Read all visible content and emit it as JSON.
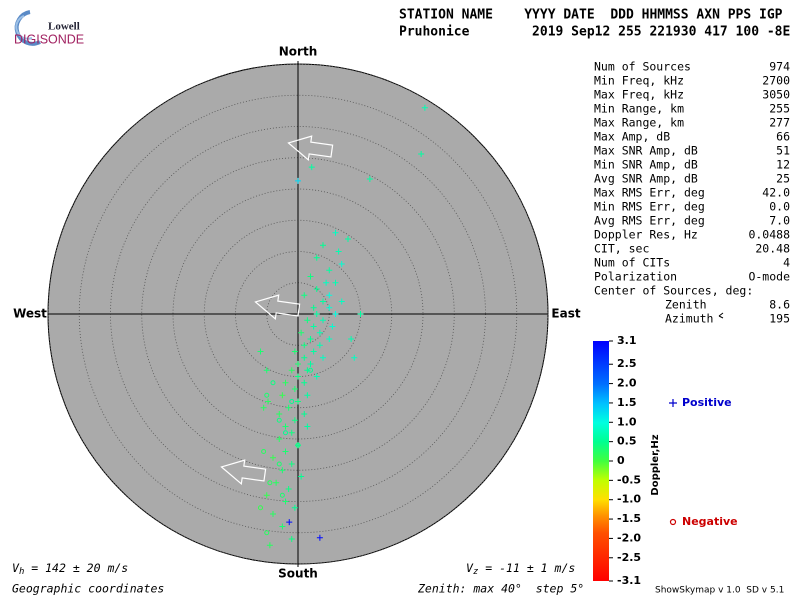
{
  "logo": {
    "top": "Lowell",
    "bottom": "DIGISONDE"
  },
  "header": {
    "line1": "STATION NAME    YYYY DATE  DDD HHMMSS AXN PPS IGP",
    "line2": "Pruhonice        2019 Sep12 255 221930 417 100 -8E"
  },
  "stats": {
    "rows": [
      [
        "Num of Sources",
        "974"
      ],
      [
        "Min Freq, kHz",
        "2700"
      ],
      [
        "Max Freq, kHz",
        "3050"
      ],
      [
        "Min Range, km",
        "255"
      ],
      [
        "Max Range, km",
        "277"
      ],
      [
        "Max Amp, dB",
        "66"
      ],
      [
        "Max SNR Amp, dB",
        "51"
      ],
      [
        "Min SNR Amp, dB",
        "12"
      ],
      [
        "Avg SNR Amp, dB",
        "25"
      ],
      [
        "Max RMS Err, deg",
        "42.0"
      ],
      [
        "Min RMS Err, deg",
        "0.0"
      ],
      [
        "Avg RMS Err, deg",
        "7.0"
      ],
      [
        "Doppler Res, Hz",
        "0.0488"
      ],
      [
        "CIT, sec",
        "20.48"
      ],
      [
        "Num of CITs",
        "4"
      ],
      [
        "Polarization",
        "O-mode"
      ]
    ],
    "center_title": "Center of Sources, deg:",
    "center_rows": [
      [
        "Zenith",
        "8.6"
      ],
      [
        "Azimuth",
        "195"
      ]
    ]
  },
  "footer": {
    "vh": {
      "symbol": "V",
      "subscript": "h",
      "text": " = 142 ± 20 m/s"
    },
    "vz": {
      "symbol": "V",
      "subscript": "z",
      "text": " = -11 ± 1 m/s"
    },
    "coords": "Geographic coordinates",
    "zenith": "Zenith: max 40°  step 5°",
    "version": "ShowSkymap v 1.0  SD v 5.1"
  },
  "chart_data": {
    "type": "skymap",
    "directions": {
      "north": "North",
      "south": "South",
      "east": "East",
      "west": "West"
    },
    "rlim": [
      0,
      40
    ],
    "rticks": [
      5,
      10,
      15,
      20,
      25,
      30,
      35,
      40
    ],
    "colorbar": {
      "label": "Doppler,Hz",
      "lim": [
        -3.1,
        3.1
      ],
      "ticks": [
        3.1,
        2.5,
        {
          "value": 2,
          "label": "2.0"
        },
        1.5,
        {
          "value": 1,
          "label": "1.0"
        },
        0.5,
        0,
        -0.5,
        {
          "value": -1,
          "label": "-1.0"
        },
        -1.5,
        {
          "value": -2,
          "label": "-2.0"
        },
        -2.5,
        -3.1
      ]
    },
    "series": [
      {
        "name": "Positive",
        "color": "#0000cc",
        "marker": "plus",
        "east": [
          6,
          8,
          4,
          6.5,
          3,
          7,
          5,
          2,
          4.5,
          6,
          3,
          5,
          1,
          4,
          7,
          2.5,
          5,
          3,
          6,
          1.5,
          4,
          2.5,
          5.5,
          0.5,
          3.5,
          2,
          5,
          1,
          3.5,
          -0.5,
          2.5,
          1,
          4,
          0,
          2,
          -1,
          1.5,
          0,
          3,
          -2,
          1,
          -0.5,
          1.5,
          -2.5,
          0,
          -1.5,
          1,
          -3,
          -0.5,
          -2,
          1.5,
          -1,
          -3,
          0,
          -2,
          -4,
          -1,
          -2.5,
          0.5,
          -3.5,
          -1.5,
          -5,
          -2,
          -0.5,
          -4,
          -2.5,
          -1,
          -4.5,
          20.3,
          19.7,
          11.5,
          2.2,
          0,
          -1.4,
          3.5,
          10,
          8.5,
          9,
          -5,
          -6,
          -5.5,
          -4.8
        ],
        "north": [
          13,
          12,
          11,
          10,
          9,
          8,
          7,
          6,
          5,
          5,
          4,
          3,
          3,
          2,
          2,
          1,
          1,
          0,
          0,
          -1,
          -1,
          -2,
          -2,
          -3,
          -3,
          -4,
          -4,
          -5,
          -5,
          -6,
          -6,
          -7,
          -7,
          -8,
          -8,
          -9,
          -9,
          -10,
          -10,
          -11,
          -11,
          -12,
          -13,
          -13,
          -14,
          -15,
          -16,
          -16,
          -17,
          -18,
          -18,
          -19,
          -20,
          -21,
          -22,
          -23,
          -24,
          -25,
          -26,
          -27,
          -28,
          -29,
          -30,
          -31,
          -32,
          -34,
          -36,
          -37,
          33,
          25.6,
          21.6,
          23.5,
          21.3,
          -33.3,
          -35.8,
          0,
          -4,
          -7,
          -9,
          -6,
          -15,
          -14
        ],
        "doppler": [
          0.8,
          0.6,
          0.5,
          0.7,
          0.5,
          0.9,
          0.6,
          0.4,
          0.8,
          0.7,
          0.5,
          1.0,
          0.4,
          0.6,
          0.8,
          0.5,
          0.9,
          0.6,
          1.0,
          0.4,
          0.7,
          0.6,
          0.9,
          0.3,
          0.7,
          0.5,
          0.8,
          0.4,
          0.7,
          0.3,
          0.6,
          0.5,
          0.8,
          0.3,
          0.6,
          0.2,
          0.5,
          0.4,
          0.7,
          0.2,
          0.5,
          0.3,
          0.6,
          0.1,
          0.4,
          0.3,
          0.5,
          0.2,
          0.4,
          0.3,
          0.6,
          0.4,
          0.2,
          0.5,
          0.3,
          0.1,
          0.4,
          0.3,
          0.5,
          0.2,
          0.4,
          0.1,
          0.3,
          0.5,
          0.2,
          0.3,
          0.4,
          0.2,
          0.7,
          0.6,
          0.6,
          0.6,
          1.3,
          3.0,
          3.0,
          0.6,
          0.7,
          0.8,
          0.3,
          0.3,
          0.2,
          0.2
        ]
      },
      {
        "name": "Negative",
        "color": "#cc0000",
        "marker": "circle",
        "east": [
          -4,
          -5,
          -3,
          -5.5,
          -2,
          -4.5,
          -6,
          -3,
          -1,
          -5,
          0,
          -2.5,
          2
        ],
        "north": [
          -11,
          -13,
          -17,
          -22,
          -19,
          -27,
          -31,
          -24,
          -14,
          -35,
          -21,
          -29,
          -9
        ],
        "doppler": [
          0.4,
          0.3,
          0.4,
          0.2,
          0.5,
          0.2,
          0.1,
          0.3,
          0.5,
          0.2,
          0.4,
          0.3,
          0.5
        ]
      }
    ]
  }
}
